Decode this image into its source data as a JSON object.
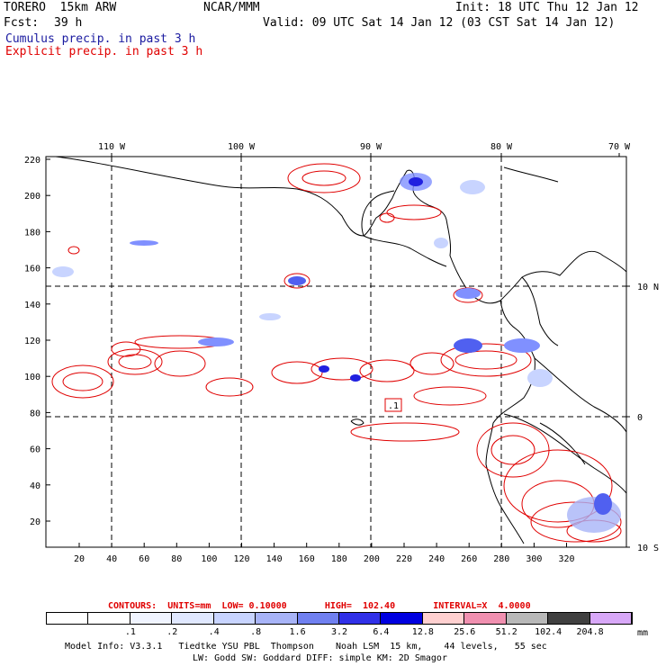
{
  "header": {
    "model": "TORERO  15km ARW",
    "center": "NCAR/MMM",
    "init": "Init: 18 UTC Thu 12 Jan 12",
    "fcst_label": "Fcst:",
    "fcst_value": "39 h",
    "valid": "Valid: 09 UTC Sat 14 Jan 12 (03 CST Sat 14 Jan 12)",
    "legend_cumulus": "Cumulus precip. in past 3 h",
    "legend_explicit": "Explicit precip. in past 3 h"
  },
  "map": {
    "top_lon_labels": [
      "110 W",
      "100 W",
      "90 W",
      "80 W",
      "70 W"
    ],
    "right_lat_labels": [
      "10 N",
      "0",
      "10 S"
    ],
    "left_y_ticks": [
      "220",
      "200",
      "180",
      "160",
      "140",
      "120",
      "100",
      "80",
      "60",
      "40",
      "20"
    ],
    "bottom_x_ticks": [
      "20",
      "40",
      "60",
      "80",
      "100",
      "120",
      "140",
      "160",
      "180",
      "200",
      "220",
      "240",
      "260",
      "280",
      "300",
      "320"
    ],
    "contour_label": ".1",
    "colors": {
      "coast": "#000000",
      "explicit": "#e00000",
      "cumulus_light": "#c8d4ff",
      "cumulus_mid": "#8090ff",
      "cumulus_dark": "#2020e0"
    }
  },
  "contours_info": {
    "text": "CONTOURS:  UNITS=mm  LOW= 0.10000       HIGH=  102.40       INTERVAL=X  4.0000"
  },
  "colorbar": {
    "labels": [
      ".1",
      ".2",
      ".4",
      ".8",
      "1.6",
      "3.2",
      "6.4",
      "12.8",
      "25.6",
      "51.2",
      "102.4",
      "204.8"
    ],
    "unit": "mm",
    "colors": [
      "#ffffff",
      "#ffffff",
      "#f0f4ff",
      "#e0e8ff",
      "#c8d4ff",
      "#a8b4f8",
      "#7080f0",
      "#3030e8",
      "#0000e0",
      "#ffd0d0",
      "#f090b0",
      "#b8b8b8",
      "#404040",
      "#d8a8f8"
    ]
  },
  "footer": {
    "line1": "Model Info: V3.3.1   Tiedtke YSU PBL  Thompson    Noah LSM  15 km,    44 levels,   55 sec",
    "line2": "LW: Godd SW: Goddard DIFF: simple KM: 2D Smagor"
  }
}
